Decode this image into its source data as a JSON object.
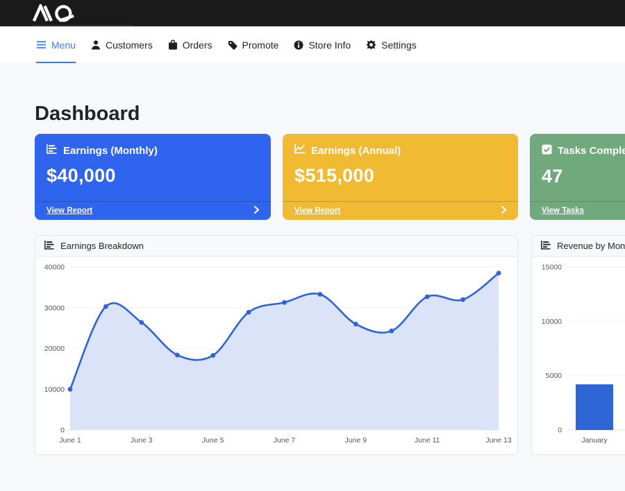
{
  "topbar": {
    "logo_mark": "AQ"
  },
  "nav": {
    "items": [
      {
        "label": "Menu",
        "icon": "hamburger-icon",
        "active": true
      },
      {
        "label": "Customers",
        "icon": "person-icon",
        "active": false
      },
      {
        "label": "Orders",
        "icon": "shopping-bag-icon",
        "active": false
      },
      {
        "label": "Promote",
        "icon": "tag-icon",
        "active": false
      },
      {
        "label": "Store Info",
        "icon": "info-circle-icon",
        "active": false
      },
      {
        "label": "Settings",
        "icon": "gear-icon",
        "active": false
      }
    ],
    "active_color": "#377cf6"
  },
  "page": {
    "title": "Dashboard",
    "background": "#f7f8fa"
  },
  "stat_cards": [
    {
      "title": "Earnings (Monthly)",
      "value": "$40,000",
      "link_label": "View Report",
      "color": "#2e64ee",
      "icon": "bar-chart-icon"
    },
    {
      "title": "Earnings (Annual)",
      "value": "$515,000",
      "link_label": "View Report",
      "color": "#f1ba33",
      "icon": "line-chart-icon"
    },
    {
      "title": "Tasks Completed",
      "value": "47",
      "link_label": "View Tasks",
      "color": "#70a97c",
      "icon": "check-square-icon"
    }
  ],
  "chart_data": [
    {
      "type": "line",
      "title": "Earnings Breakdown",
      "x": [
        "June 1",
        "June 2",
        "June 3",
        "June 4",
        "June 5",
        "June 6",
        "June 7",
        "June 8",
        "June 9",
        "June 10",
        "June 11",
        "June 12",
        "June 13"
      ],
      "values": [
        10000,
        30300,
        26400,
        18400,
        18300,
        28900,
        31300,
        33300,
        26000,
        24300,
        32700,
        32000,
        38500
      ],
      "ylim": [
        0,
        40000
      ],
      "yticks": [
        0,
        10000,
        20000,
        30000,
        40000
      ],
      "x_tick_step": 2,
      "line_color": "#2e63d8",
      "fill_color": "#dbe3f8",
      "grid": true,
      "legend": "none"
    },
    {
      "type": "bar",
      "title": "Revenue by Month",
      "categories": [
        "January"
      ],
      "values": [
        4200
      ],
      "ylim": [
        0,
        15000
      ],
      "yticks": [
        0,
        5000,
        10000,
        15000
      ],
      "bar_color": "#2e66d6",
      "grid": true,
      "legend": "none"
    }
  ]
}
